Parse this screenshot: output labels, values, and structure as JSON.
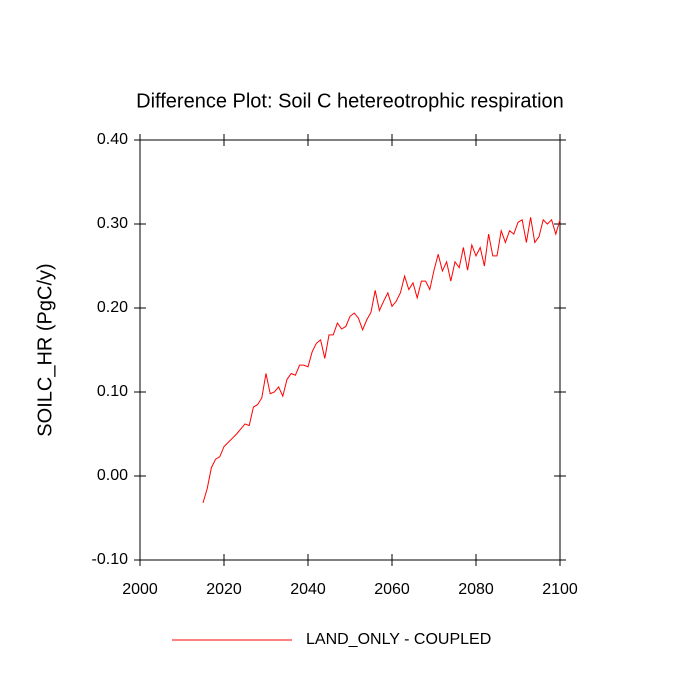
{
  "chart_data": {
    "type": "line",
    "title": "Difference Plot: Soil C hetereotrophic respiration",
    "y_label": "SOILC_HR  (PgC/y)",
    "x": [
      2015,
      2016,
      2017,
      2018,
      2019,
      2020,
      2021,
      2022,
      2023,
      2024,
      2025,
      2026,
      2027,
      2028,
      2029,
      2030,
      2031,
      2032,
      2033,
      2034,
      2035,
      2036,
      2037,
      2038,
      2039,
      2040,
      2041,
      2042,
      2043,
      2044,
      2045,
      2046,
      2047,
      2048,
      2049,
      2050,
      2051,
      2052,
      2053,
      2054,
      2055,
      2056,
      2057,
      2058,
      2059,
      2060,
      2061,
      2062,
      2063,
      2064,
      2065,
      2066,
      2067,
      2068,
      2069,
      2070,
      2071,
      2072,
      2073,
      2074,
      2075,
      2076,
      2077,
      2078,
      2079,
      2080,
      2081,
      2082,
      2083,
      2084,
      2085,
      2086,
      2087,
      2088,
      2089,
      2090,
      2091,
      2092,
      2093,
      2094,
      2095,
      2096,
      2097,
      2098,
      2099,
      2100
    ],
    "series": [
      {
        "name": "LAND_ONLY - COUPLED",
        "color": "#ff0000",
        "values": [
          -0.032,
          -0.015,
          0.01,
          0.02,
          0.023,
          0.035,
          0.04,
          0.045,
          0.05,
          0.056,
          0.062,
          0.06,
          0.082,
          0.085,
          0.093,
          0.122,
          0.098,
          0.1,
          0.106,
          0.095,
          0.115,
          0.122,
          0.12,
          0.132,
          0.132,
          0.13,
          0.148,
          0.158,
          0.162,
          0.14,
          0.168,
          0.168,
          0.182,
          0.175,
          0.178,
          0.19,
          0.194,
          0.188,
          0.174,
          0.186,
          0.195,
          0.221,
          0.197,
          0.208,
          0.218,
          0.202,
          0.208,
          0.218,
          0.238,
          0.222,
          0.23,
          0.212,
          0.232,
          0.232,
          0.222,
          0.245,
          0.264,
          0.244,
          0.255,
          0.232,
          0.255,
          0.248,
          0.272,
          0.245,
          0.275,
          0.262,
          0.272,
          0.25,
          0.288,
          0.262,
          0.262,
          0.292,
          0.278,
          0.292,
          0.288,
          0.302,
          0.305,
          0.278,
          0.308,
          0.278,
          0.285,
          0.305,
          0.3,
          0.305,
          0.288,
          0.305
        ]
      }
    ],
    "xlim": [
      2000,
      2100
    ],
    "xticks": [
      2000,
      2020,
      2040,
      2060,
      2080,
      2100
    ],
    "ylim": [
      -0.1,
      0.4
    ],
    "yticks": [
      {
        "value": -0.1,
        "label": "-0.10"
      },
      {
        "value": 0,
        "label": "0.00"
      },
      {
        "value": 0.1,
        "label": "0.10"
      },
      {
        "value": 0.2,
        "label": "0.20"
      },
      {
        "value": 0.3,
        "label": "0.30"
      },
      {
        "value": 0.4,
        "label": "0.40"
      }
    ],
    "legend": "bottom"
  }
}
